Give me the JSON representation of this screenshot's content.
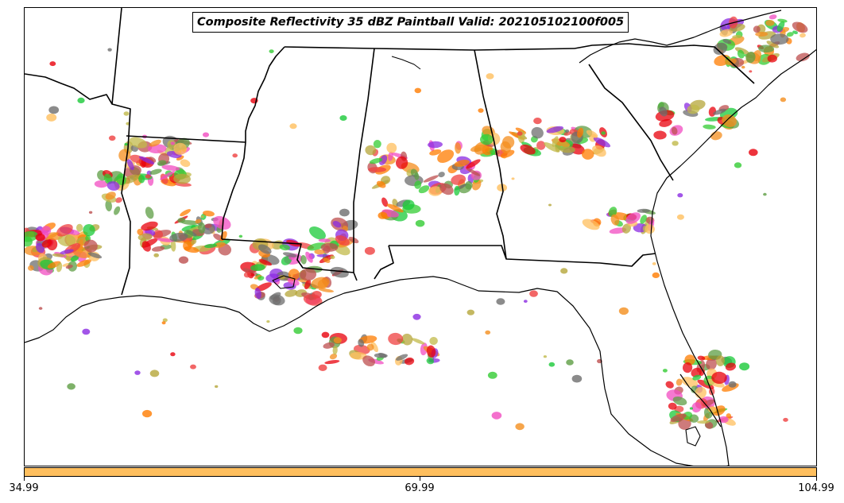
{
  "title": "Composite Reflectivity 35 dBZ Paintball Valid: 202105102100f005",
  "colorbar": {
    "color": "#ffbf5e",
    "tick_labels": [
      "34.99",
      "69.99",
      "104.99"
    ]
  },
  "member_colors": [
    "#e8000b",
    "#ff7c00",
    "#1ac938",
    "#8b2be2",
    "#6e6e6e",
    "#c1b94a",
    "#f14cc1",
    "#ffbf5e",
    "#5e9e44",
    "#ef4040",
    "#bd4f4f",
    "#f48e1e",
    "#b5a63a",
    "#33cc33"
  ]
}
